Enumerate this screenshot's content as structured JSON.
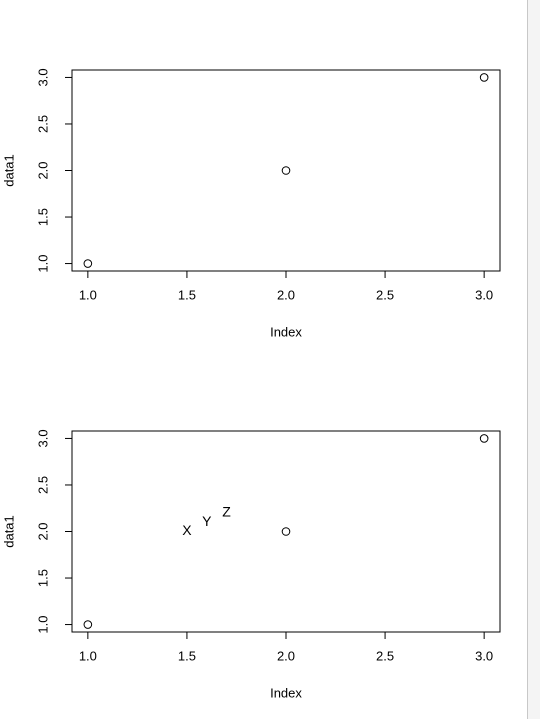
{
  "chart_data": [
    {
      "type": "scatter",
      "x": [
        1,
        2,
        3
      ],
      "y": [
        1,
        2,
        3
      ],
      "xlabel": "Index",
      "ylabel": "data1",
      "xlim": [
        0.92,
        3.08
      ],
      "ylim": [
        0.92,
        3.08
      ],
      "color": "#000000",
      "xticks": [
        {
          "value": 1,
          "label": "1.0"
        },
        {
          "value": 1.5,
          "label": "1.5"
        },
        {
          "value": 2,
          "label": "2.0"
        },
        {
          "value": 2.5,
          "label": "2.5"
        },
        {
          "value": 3,
          "label": "3.0"
        }
      ],
      "yticks": [
        {
          "value": 1,
          "label": "1.0"
        },
        {
          "value": 1.5,
          "label": "1.5"
        },
        {
          "value": 2,
          "label": "2.0"
        },
        {
          "value": 2.5,
          "label": "2.5"
        },
        {
          "value": 3,
          "label": "3.0"
        }
      ]
    },
    {
      "type": "scatter",
      "x": [
        1,
        2,
        3
      ],
      "y": [
        1,
        2,
        3
      ],
      "xlabel": "Index",
      "ylabel": "data1",
      "xlim": [
        0.92,
        3.08
      ],
      "ylim": [
        0.92,
        3.08
      ],
      "color": "#000000",
      "xticks": [
        {
          "value": 1,
          "label": "1.0"
        },
        {
          "value": 1.5,
          "label": "1.5"
        },
        {
          "value": 2,
          "label": "2.0"
        },
        {
          "value": 2.5,
          "label": "2.5"
        },
        {
          "value": 3,
          "label": "3.0"
        }
      ],
      "yticks": [
        {
          "value": 1,
          "label": "1.0"
        },
        {
          "value": 1.5,
          "label": "1.5"
        },
        {
          "value": 2,
          "label": "2.0"
        },
        {
          "value": 2.5,
          "label": "2.5"
        },
        {
          "value": 3,
          "label": "3.0"
        }
      ],
      "annotations": [
        {
          "text": "X",
          "x": 1.5,
          "y": 2.0
        },
        {
          "text": "Y",
          "x": 1.6,
          "y": 2.1
        },
        {
          "text": "Z",
          "x": 1.7,
          "y": 2.2
        }
      ]
    }
  ]
}
